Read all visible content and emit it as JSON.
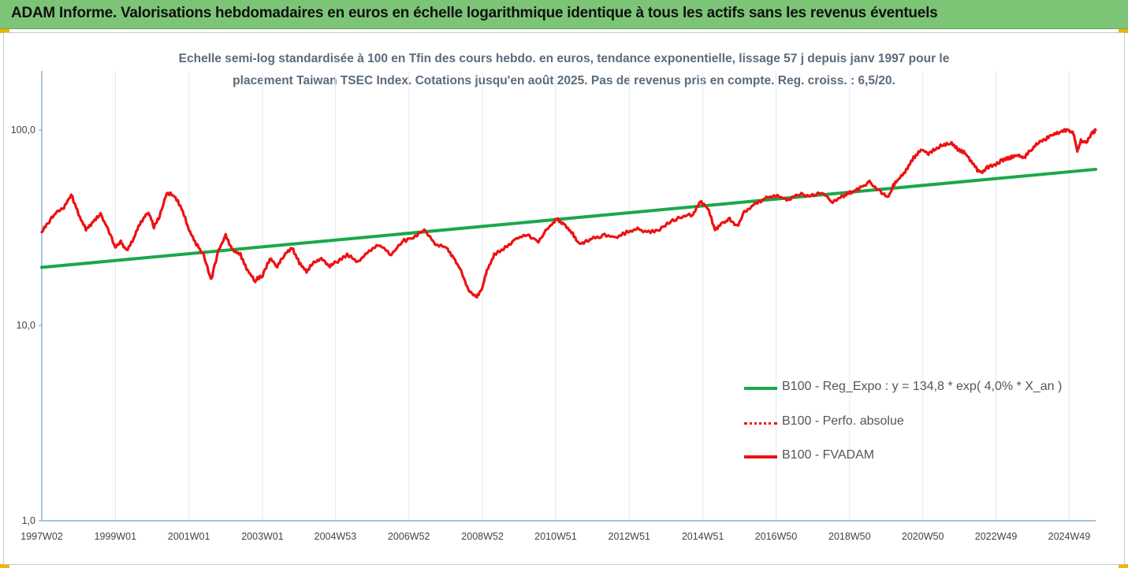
{
  "header": {
    "title": "ADAM Informe. Valorisations hebdomadaires en euros en échelle logarithmique identique à tous les actifs sans les revenus éventuels"
  },
  "colors": {
    "header_bg": "#7cc576",
    "corner_accent": "#f2b400",
    "regression": "#1aa84a",
    "series": "#ee1111",
    "axis": "#6e9ec7",
    "grid": "#dfe8f2",
    "subtitle": "#5b6b7c"
  },
  "chart_data": {
    "type": "line",
    "title_lines": [
      "Echelle semi-log standardisée à 100 en Tfin des cours hebdo. en euros, tendance exponentielle, lissage 57 j depuis janv 1997 pour le",
      "placement Taiwan TSEC Index. Cotations jusqu'en août 2025. Pas de revenus pris en compte. Reg. croiss. : 6,5/20."
    ],
    "y_scale": "log",
    "ylim": [
      1,
      180
    ],
    "y_ticks": [
      1,
      10,
      100
    ],
    "y_tick_labels": [
      "1,0",
      "10,0",
      "100,0"
    ],
    "xlim": [
      1997.0,
      2025.65
    ],
    "x_ticks": [
      1997.0,
      1999.0,
      2001.0,
      2003.0,
      2004.98,
      2006.98,
      2008.98,
      2010.97,
      2012.97,
      2014.97,
      2016.96,
      2018.96,
      2020.95,
      2022.94,
      2024.93
    ],
    "x_tick_labels": [
      "1997W02",
      "1999W01",
      "2001W01",
      "2003W01",
      "2004W53",
      "2006W52",
      "2008W52",
      "2010W51",
      "2012W51",
      "2014W51",
      "2016W50",
      "2018W50",
      "2020W50",
      "2022W49",
      "2024W49"
    ],
    "grid": "vertical",
    "legend_position": "bottom-right",
    "series": [
      {
        "name": "B100 - Reg_Expo : y = 134,8 * exp( 4,0% *  X_an )",
        "style": "solid-green",
        "x": [
          1997.0,
          2025.65
        ],
        "y": [
          19.8,
          62.9
        ]
      },
      {
        "name": "B100 - Perfo. absolue",
        "style": "dotted-red",
        "x": [],
        "y": []
      },
      {
        "name": "B100 - FVADAM",
        "style": "solid-red",
        "x": [
          1997.0,
          1997.2,
          1997.4,
          1997.6,
          1997.8,
          1998.0,
          1998.2,
          1998.4,
          1998.6,
          1998.8,
          1999.0,
          1999.15,
          1999.3,
          1999.5,
          1999.7,
          1999.9,
          2000.05,
          2000.2,
          2000.4,
          2000.6,
          2000.8,
          2001.0,
          2001.2,
          2001.4,
          2001.6,
          2001.8,
          2002.0,
          2002.2,
          2002.4,
          2002.6,
          2002.8,
          2003.0,
          2003.2,
          2003.4,
          2003.6,
          2003.8,
          2004.0,
          2004.2,
          2004.4,
          2004.6,
          2004.8,
          2005.0,
          2005.3,
          2005.6,
          2005.9,
          2006.2,
          2006.5,
          2006.8,
          2007.1,
          2007.4,
          2007.7,
          2008.0,
          2008.2,
          2008.4,
          2008.6,
          2008.8,
          2008.95,
          2009.1,
          2009.3,
          2009.6,
          2009.9,
          2010.2,
          2010.5,
          2010.8,
          2011.0,
          2011.2,
          2011.4,
          2011.6,
          2011.8,
          2012.0,
          2012.3,
          2012.6,
          2012.9,
          2013.2,
          2013.5,
          2013.8,
          2014.1,
          2014.4,
          2014.7,
          2014.9,
          2015.1,
          2015.3,
          2015.5,
          2015.7,
          2015.9,
          2016.1,
          2016.4,
          2016.7,
          2017.0,
          2017.3,
          2017.6,
          2017.9,
          2018.2,
          2018.5,
          2018.8,
          2019.0,
          2019.2,
          2019.5,
          2019.8,
          2020.0,
          2020.15,
          2020.3,
          2020.5,
          2020.7,
          2020.9,
          2021.1,
          2021.3,
          2021.5,
          2021.7,
          2021.9,
          2022.1,
          2022.3,
          2022.5,
          2022.7,
          2022.9,
          2023.1,
          2023.3,
          2023.5,
          2023.7,
          2023.9,
          2024.1,
          2024.3,
          2024.5,
          2024.7,
          2024.9,
          2025.05,
          2025.15,
          2025.25,
          2025.4,
          2025.55,
          2025.65
        ],
        "y": [
          30,
          34,
          38,
          40,
          47,
          37,
          31,
          34,
          37,
          31,
          25,
          27,
          24,
          28,
          34,
          38,
          32,
          36,
          48,
          46,
          40,
          31,
          26,
          23,
          17,
          24,
          29,
          24,
          23,
          19,
          17,
          18,
          22,
          20,
          23,
          25,
          21,
          19,
          21,
          22,
          20,
          21,
          23,
          21,
          24,
          26,
          23,
          27,
          28,
          31,
          26,
          25,
          22,
          19,
          15,
          14,
          15,
          19,
          23,
          25,
          28,
          29,
          27,
          32,
          35,
          33,
          30,
          26,
          27,
          28,
          29,
          28,
          30,
          31,
          30,
          31,
          34,
          36,
          37,
          43,
          40,
          31,
          33,
          35,
          32,
          38,
          42,
          45,
          46,
          44,
          47,
          46,
          48,
          43,
          46,
          48,
          50,
          54,
          48,
          45,
          52,
          56,
          62,
          72,
          80,
          76,
          80,
          84,
          86,
          80,
          76,
          68,
          60,
          64,
          66,
          70,
          72,
          74,
          72,
          80,
          86,
          90,
          96,
          98,
          100,
          96,
          78,
          88,
          86,
          96,
          100
        ]
      }
    ]
  }
}
